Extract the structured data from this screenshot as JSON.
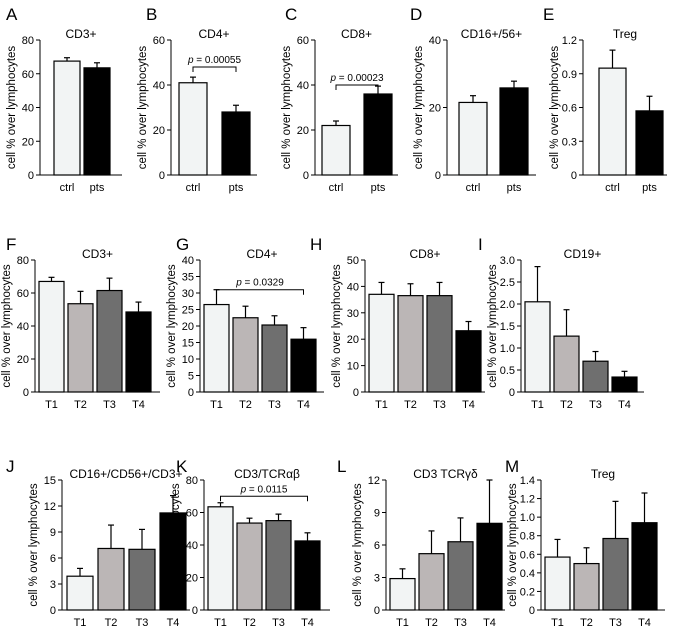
{
  "figure": {
    "ylabel": "cell % over lymphocytes"
  },
  "chart_data": [
    {
      "letter": "A",
      "title": "CD3+",
      "type": "bar",
      "categories": [
        "ctrl",
        "pts"
      ],
      "values": [
        67.5,
        63.5
      ],
      "errors": [
        2,
        3
      ],
      "fills": [
        "#f2f4f4",
        "#000000"
      ],
      "ylim": [
        0,
        80
      ],
      "yticks": [
        "0",
        "20",
        "40",
        "60",
        "80"
      ]
    },
    {
      "letter": "B",
      "title": "CD4+",
      "type": "bar",
      "categories": [
        "ctrl",
        "pts"
      ],
      "values": [
        41,
        28
      ],
      "errors": [
        2.5,
        3
      ],
      "fills": [
        "#f2f4f4",
        "#000000"
      ],
      "ylim": [
        0,
        60
      ],
      "yticks": [
        "0",
        "20",
        "40",
        "60"
      ],
      "annotation": {
        "p": "p",
        "text": " = 0.00055",
        "from": 0,
        "to": 1,
        "level": 48
      }
    },
    {
      "letter": "C",
      "title": "CD8+",
      "type": "bar",
      "categories": [
        "ctrl",
        "pts"
      ],
      "values": [
        22,
        36
      ],
      "errors": [
        2,
        3.5
      ],
      "fills": [
        "#f2f4f4",
        "#000000"
      ],
      "ylim": [
        0,
        60
      ],
      "yticks": [
        "0",
        "20",
        "40",
        "60"
      ],
      "annotation": {
        "p": "p",
        "text": " = 0.00023",
        "from": 0,
        "to": 1,
        "level": 40
      }
    },
    {
      "letter": "D",
      "title": "CD16+/56+",
      "type": "bar",
      "categories": [
        "ctrl",
        "pts"
      ],
      "values": [
        21.5,
        25.8
      ],
      "errors": [
        2,
        2
      ],
      "fills": [
        "#f2f4f4",
        "#000000"
      ],
      "ylim": [
        0,
        40
      ],
      "yticks": [
        "0",
        "20",
        "40"
      ]
    },
    {
      "letter": "E",
      "title": "Treg",
      "type": "bar",
      "categories": [
        "ctrl",
        "pts"
      ],
      "values": [
        0.95,
        0.57
      ],
      "errors": [
        0.16,
        0.13
      ],
      "fills": [
        "#f2f4f4",
        "#000000"
      ],
      "ylim": [
        0,
        1.2
      ],
      "yticks": [
        "0",
        "0.3",
        "0.6",
        "0.9",
        "1.2"
      ]
    },
    {
      "letter": "F",
      "title": "CD3+",
      "type": "bar",
      "categories": [
        "T1",
        "T2",
        "T3",
        "T4"
      ],
      "values": [
        67,
        53.5,
        61.5,
        48.5
      ],
      "errors": [
        2.5,
        7.5,
        7.5,
        6
      ],
      "fills": [
        "#f2f4f4",
        "#bbb6b6",
        "#6f6f6f",
        "#000000"
      ],
      "ylim": [
        0,
        80
      ],
      "yticks": [
        "0",
        "20",
        "40",
        "60",
        "80"
      ]
    },
    {
      "letter": "G",
      "title": "CD4+",
      "type": "bar",
      "categories": [
        "T1",
        "T2",
        "T3",
        "T4"
      ],
      "values": [
        26.5,
        22.5,
        20.3,
        16
      ],
      "errors": [
        4.5,
        3.5,
        2.8,
        3.5
      ],
      "fills": [
        "#f2f4f4",
        "#bbb6b6",
        "#6f6f6f",
        "#000000"
      ],
      "ylim": [
        0,
        40
      ],
      "yticks": [
        "0",
        "5",
        "10",
        "15",
        "20",
        "25",
        "30",
        "35",
        "40"
      ],
      "annotation": {
        "p": "p",
        "text": " = 0.0329",
        "from": 0,
        "to": 3,
        "level": 31
      }
    },
    {
      "letter": "H",
      "title": "CD8+",
      "type": "bar",
      "categories": [
        "T1",
        "T2",
        "T3",
        "T4"
      ],
      "values": [
        37,
        36.5,
        36.5,
        23.2
      ],
      "errors": [
        4.5,
        4.5,
        5,
        3.5
      ],
      "fills": [
        "#f2f4f4",
        "#bbb6b6",
        "#6f6f6f",
        "#000000"
      ],
      "ylim": [
        0,
        50
      ],
      "yticks": [
        "0",
        "10",
        "20",
        "30",
        "40",
        "50"
      ]
    },
    {
      "letter": "I",
      "title": "CD19+",
      "type": "bar",
      "categories": [
        "T1",
        "T2",
        "T3",
        "T4"
      ],
      "values": [
        2.05,
        1.27,
        0.7,
        0.34
      ],
      "errors": [
        0.8,
        0.6,
        0.22,
        0.13
      ],
      "fills": [
        "#f2f4f4",
        "#bbb6b6",
        "#6f6f6f",
        "#000000"
      ],
      "ylim": [
        0,
        3.0
      ],
      "yticks": [
        "0",
        "0.5",
        "1.0",
        "1.5",
        "2.0",
        "2.5",
        "3.0"
      ]
    },
    {
      "letter": "J",
      "title": "CD16+/CD56+/CD3+",
      "type": "bar",
      "categories": [
        "T1",
        "T2",
        "T3",
        "T4"
      ],
      "values": [
        3.9,
        7.1,
        7.0,
        11.2
      ],
      "errors": [
        0.9,
        2.7,
        2.3,
        2
      ],
      "fills": [
        "#f2f4f4",
        "#bbb6b6",
        "#6f6f6f",
        "#000000"
      ],
      "ylim": [
        0,
        15
      ],
      "yticks": [
        "0",
        "3",
        "6",
        "9",
        "12",
        "15"
      ]
    },
    {
      "letter": "K",
      "title": "CD3/TCRαβ",
      "type": "bar",
      "categories": [
        "T1",
        "T2",
        "T3",
        "T4"
      ],
      "values": [
        63.5,
        53.5,
        55,
        42.5
      ],
      "errors": [
        2.5,
        3,
        4,
        5
      ],
      "fills": [
        "#f2f4f4",
        "#bbb6b6",
        "#6f6f6f",
        "#000000"
      ],
      "ylim": [
        0,
        80
      ],
      "yticks": [
        "0",
        "20",
        "40",
        "60",
        "80"
      ],
      "annotation": {
        "p": "p",
        "text": " = 0.0115",
        "from": 0,
        "to": 3,
        "level": 70
      }
    },
    {
      "letter": "L",
      "title": "CD3 TCRγδ",
      "type": "bar",
      "categories": [
        "T1",
        "T2",
        "T3",
        "T4"
      ],
      "values": [
        2.9,
        5.2,
        6.3,
        8
      ],
      "errors": [
        0.9,
        2.1,
        2.2,
        4
      ],
      "fills": [
        "#f2f4f4",
        "#bbb6b6",
        "#6f6f6f",
        "#000000"
      ],
      "ylim": [
        0,
        12
      ],
      "yticks": [
        "0",
        "3",
        "6",
        "9",
        "12"
      ]
    },
    {
      "letter": "M",
      "title": "Treg",
      "type": "bar",
      "categories": [
        "T1",
        "T2",
        "T3",
        "T4"
      ],
      "values": [
        0.57,
        0.5,
        0.77,
        0.94
      ],
      "errors": [
        0.19,
        0.17,
        0.4,
        0.32
      ],
      "fills": [
        "#f2f4f4",
        "#bbb6b6",
        "#6f6f6f",
        "#000000"
      ],
      "ylim": [
        0,
        1.4
      ],
      "yticks": [
        "0",
        "0.2",
        "0.4",
        "0.6",
        "0.8",
        "1.0",
        "1.2",
        "1.4"
      ]
    }
  ]
}
